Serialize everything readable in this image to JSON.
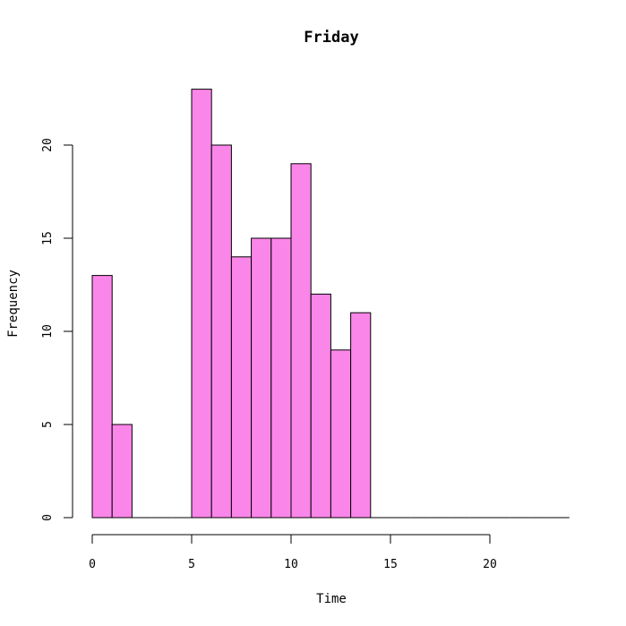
{
  "chart_data": {
    "type": "bar",
    "title": "Friday",
    "xlabel": "Time",
    "ylabel": "Frequency",
    "bin_width": 1,
    "bins": [
      {
        "start": 0,
        "end": 1,
        "count": 13
      },
      {
        "start": 1,
        "end": 2,
        "count": 5
      },
      {
        "start": 2,
        "end": 3,
        "count": 0
      },
      {
        "start": 3,
        "end": 4,
        "count": 0
      },
      {
        "start": 4,
        "end": 5,
        "count": 0
      },
      {
        "start": 5,
        "end": 6,
        "count": 23
      },
      {
        "start": 6,
        "end": 7,
        "count": 20
      },
      {
        "start": 7,
        "end": 8,
        "count": 14
      },
      {
        "start": 8,
        "end": 9,
        "count": 15
      },
      {
        "start": 9,
        "end": 10,
        "count": 15
      },
      {
        "start": 10,
        "end": 11,
        "count": 19
      },
      {
        "start": 11,
        "end": 12,
        "count": 12
      },
      {
        "start": 12,
        "end": 13,
        "count": 9
      },
      {
        "start": 13,
        "end": 14,
        "count": 11
      },
      {
        "start": 14,
        "end": 15,
        "count": 0
      },
      {
        "start": 15,
        "end": 16,
        "count": 0
      },
      {
        "start": 16,
        "end": 17,
        "count": 0
      },
      {
        "start": 17,
        "end": 18,
        "count": 0
      },
      {
        "start": 18,
        "end": 19,
        "count": 0
      },
      {
        "start": 19,
        "end": 20,
        "count": 0
      },
      {
        "start": 20,
        "end": 21,
        "count": 0
      },
      {
        "start": 21,
        "end": 22,
        "count": 0
      },
      {
        "start": 22,
        "end": 23,
        "count": 0
      },
      {
        "start": 23,
        "end": 24,
        "count": 0
      }
    ],
    "xlim": [
      0,
      24
    ],
    "ylim": [
      0,
      23
    ],
    "x_ticks": [
      "0",
      "5",
      "10",
      "15",
      "20"
    ],
    "y_ticks": [
      "0",
      "5",
      "10",
      "15",
      "20"
    ],
    "bar_fill": "#fb86ea",
    "bar_stroke": "#000000",
    "grid": false,
    "legend": "none"
  }
}
